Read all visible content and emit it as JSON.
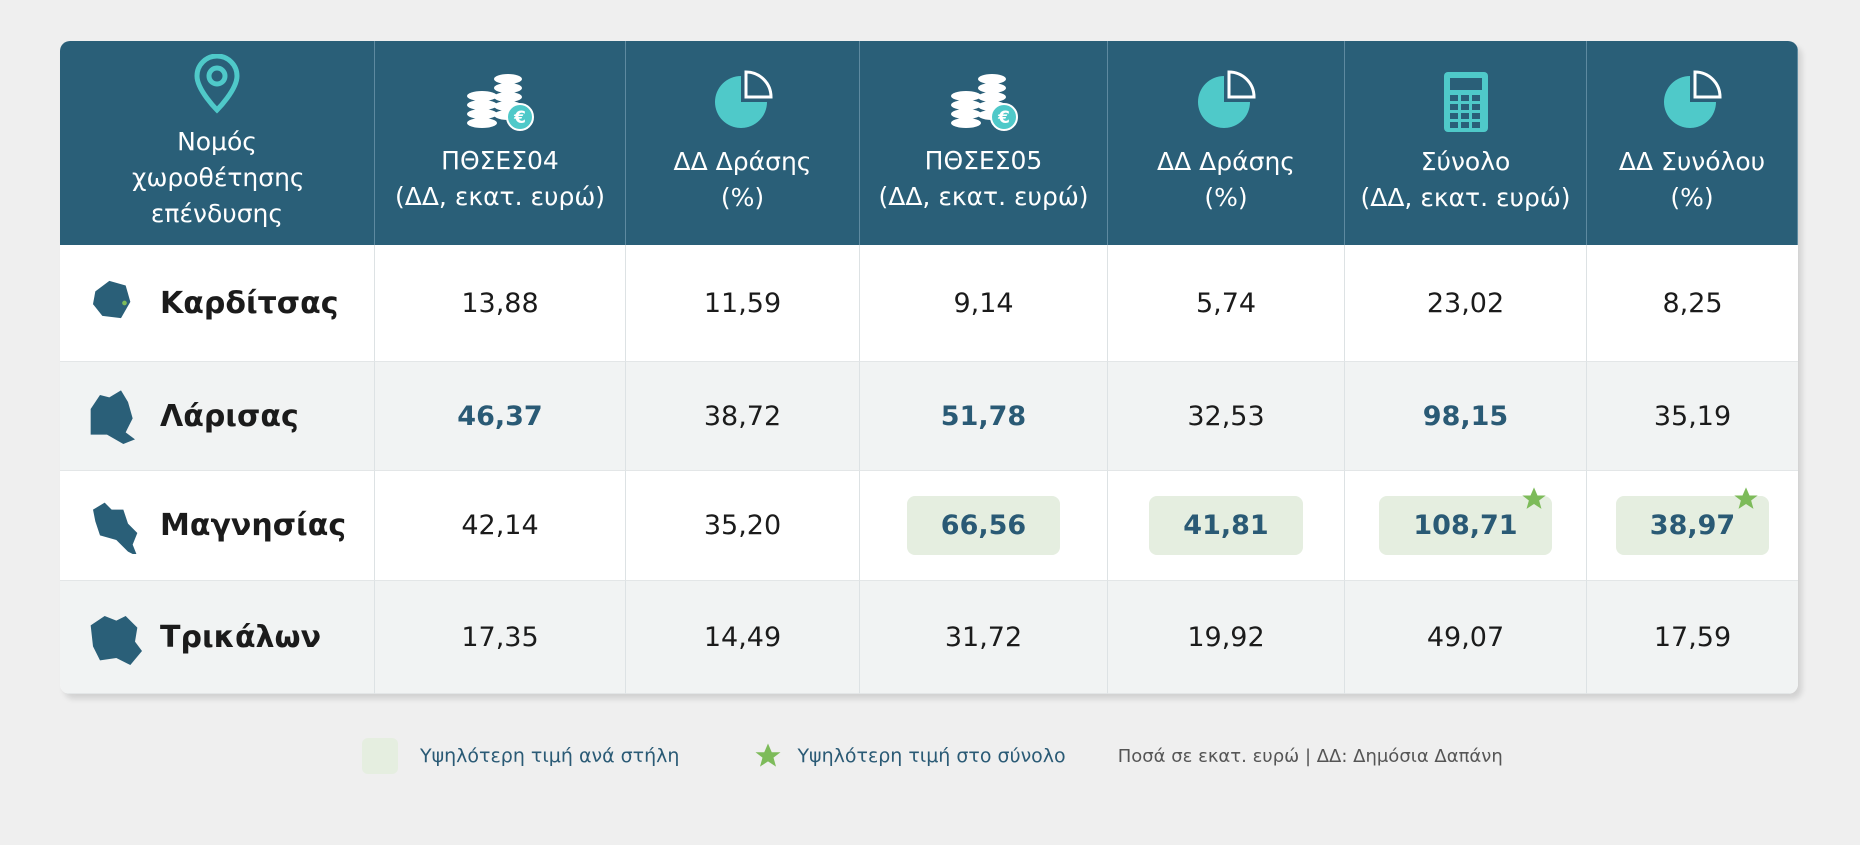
{
  "table": {
    "header": [
      {
        "title": "Νομός χωροθέτησης επένδυσης"
      },
      {
        "title": "ΠΘΣΕΣ04",
        "unit": "(ΔΔ, εκατ. ευρώ)"
      },
      {
        "title": "ΔΔ Δράσης",
        "unit": "(%)"
      },
      {
        "title": "ΠΘΣΕΣ05",
        "unit": "(ΔΔ, εκατ. ευρώ)"
      },
      {
        "title": "ΔΔ Δράσης",
        "unit": "(%)"
      },
      {
        "title": "Σύνολο",
        "unit": "(ΔΔ, εκατ. ευρώ)"
      },
      {
        "title": "ΔΔ Συνόλου",
        "unit": "(%)"
      }
    ],
    "rows": [
      [
        "Καρδίτσας",
        "13,88",
        "11,59",
        "9,14",
        "5,74",
        "23,02",
        "8,25"
      ],
      [
        "Λάρισας",
        "46,37",
        "38,72",
        "51,78",
        "32,53",
        "98,15",
        "35,19"
      ],
      [
        "Μαγνησίας",
        "42,14",
        "35,20",
        "66,56",
        "41,81",
        "108,71",
        "38,97"
      ],
      [
        "Τρικάλων",
        "17,35",
        "14,49",
        "31,72",
        "19,92",
        "49,07",
        "17,59"
      ]
    ]
  },
  "legend": {
    "column_max": "Υψηλότερη τιμή ανά στήλη",
    "overall_max": "Υψηλότερη τιμή στο σύνολο",
    "note": "Ποσά σε εκατ. ευρώ | ΔΔ: Δημόσια Δαπάνη"
  }
}
